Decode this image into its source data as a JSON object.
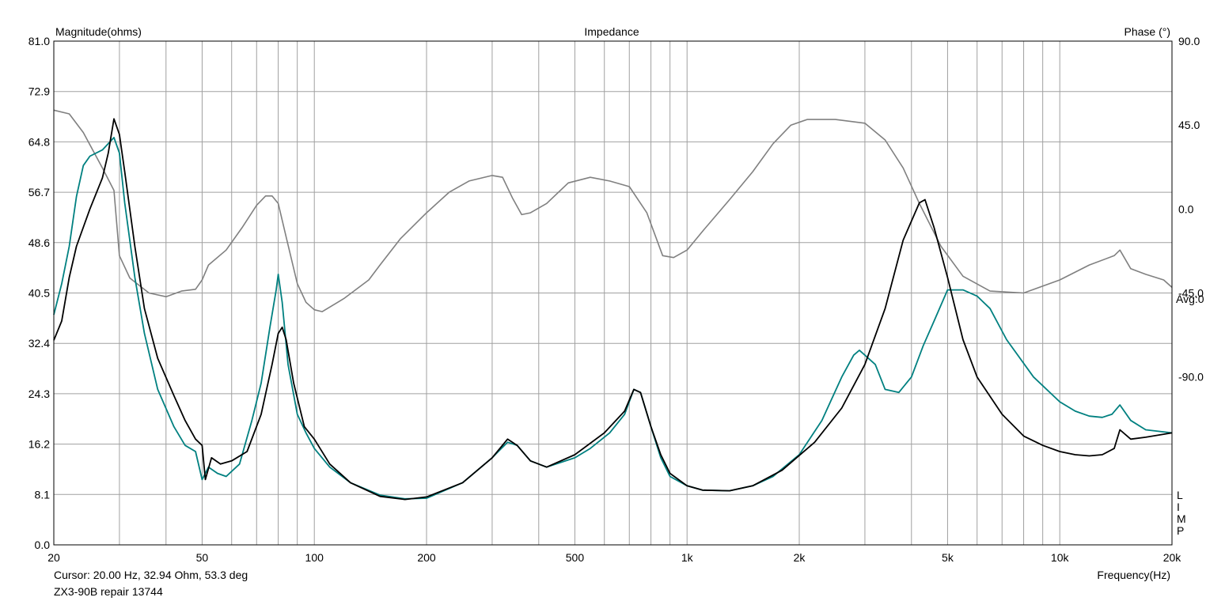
{
  "chart_data": {
    "type": "line",
    "title": "Impedance",
    "left_axis_label": "Magnitude(ohms)",
    "right_axis_label": "Phase (°)",
    "x_axis_label": "Frequency(Hz)",
    "x_scale": "log",
    "xlim": [
      20,
      20000
    ],
    "ylim_left": [
      0.0,
      81.0
    ],
    "ylim_right": [
      -180.0,
      90.0
    ],
    "grid": true,
    "left_ticks": [
      "81.0",
      "72.9",
      "64.8",
      "56.7",
      "48.6",
      "40.5",
      "32.4",
      "24.3",
      "16.2",
      "8.1",
      "0.0"
    ],
    "right_ticks": [
      "90.0",
      "45.0",
      "0.0",
      "-45.0",
      "-90.0"
    ],
    "x_tick_labels": [
      {
        "value": 20,
        "label": "20"
      },
      {
        "value": 50,
        "label": "50"
      },
      {
        "value": 100,
        "label": "100"
      },
      {
        "value": 200,
        "label": "200"
      },
      {
        "value": 500,
        "label": "500"
      },
      {
        "value": 1000,
        "label": "1k"
      },
      {
        "value": 2000,
        "label": "2k"
      },
      {
        "value": 5000,
        "label": "5k"
      },
      {
        "value": 10000,
        "label": "10k"
      },
      {
        "value": 20000,
        "label": "20k"
      }
    ],
    "avg_label": "Avg:0",
    "side_letters": [
      "L",
      "I",
      "M",
      "P"
    ],
    "cursor_text": "Cursor: 20.00 Hz, 32.94 Ohm, 53.3 deg",
    "file_label": "ZX3-90B repair 13744",
    "series": [
      {
        "axis": "right",
        "color": "#808080",
        "points": [
          [
            20,
            53
          ],
          [
            22,
            51
          ],
          [
            24,
            41
          ],
          [
            27,
            22
          ],
          [
            29,
            10
          ],
          [
            30,
            -25
          ],
          [
            32,
            -37
          ],
          [
            36,
            -45
          ],
          [
            40,
            -47
          ],
          [
            44,
            -44
          ],
          [
            48,
            -43
          ],
          [
            50,
            -38
          ],
          [
            52,
            -30
          ],
          [
            58,
            -22
          ],
          [
            64,
            -10
          ],
          [
            70,
            2
          ],
          [
            74,
            7
          ],
          [
            77,
            7
          ],
          [
            80,
            3
          ],
          [
            84,
            -15
          ],
          [
            90,
            -40
          ],
          [
            95,
            -50
          ],
          [
            100,
            -54
          ],
          [
            105,
            -55
          ],
          [
            120,
            -48
          ],
          [
            140,
            -38
          ],
          [
            150,
            -30
          ],
          [
            170,
            -16
          ],
          [
            200,
            -2
          ],
          [
            230,
            9
          ],
          [
            260,
            15
          ],
          [
            300,
            18
          ],
          [
            320,
            17
          ],
          [
            340,
            6
          ],
          [
            360,
            -3
          ],
          [
            380,
            -2
          ],
          [
            420,
            3
          ],
          [
            480,
            14
          ],
          [
            550,
            17
          ],
          [
            620,
            15
          ],
          [
            700,
            12
          ],
          [
            780,
            -2
          ],
          [
            860,
            -25
          ],
          [
            920,
            -26
          ],
          [
            1000,
            -22
          ],
          [
            1100,
            -12
          ],
          [
            1300,
            5
          ],
          [
            1500,
            20
          ],
          [
            1700,
            35
          ],
          [
            1900,
            45
          ],
          [
            2100,
            48
          ],
          [
            2500,
            48
          ],
          [
            3000,
            46
          ],
          [
            3400,
            37
          ],
          [
            3800,
            22
          ],
          [
            4200,
            3
          ],
          [
            4800,
            -20
          ],
          [
            5500,
            -36
          ],
          [
            6500,
            -44
          ],
          [
            8000,
            -45
          ],
          [
            10000,
            -38
          ],
          [
            12000,
            -30
          ],
          [
            14000,
            -25
          ],
          [
            14500,
            -22
          ],
          [
            15500,
            -32
          ],
          [
            17000,
            -35
          ],
          [
            19000,
            -38
          ],
          [
            20000,
            -42
          ]
        ]
      },
      {
        "axis": "left",
        "color": "#008080",
        "points": [
          [
            20,
            37
          ],
          [
            21,
            42
          ],
          [
            22,
            48
          ],
          [
            23,
            56
          ],
          [
            24,
            61
          ],
          [
            25,
            62.5
          ],
          [
            27,
            63.5
          ],
          [
            29,
            65.5
          ],
          [
            30,
            63
          ],
          [
            31,
            55
          ],
          [
            33,
            43
          ],
          [
            35,
            34
          ],
          [
            38,
            25
          ],
          [
            42,
            19
          ],
          [
            45,
            16
          ],
          [
            48,
            15
          ],
          [
            50,
            10.5
          ],
          [
            52,
            12.5
          ],
          [
            55,
            11.5
          ],
          [
            58,
            11
          ],
          [
            63,
            13
          ],
          [
            68,
            20
          ],
          [
            72,
            26
          ],
          [
            76,
            35
          ],
          [
            79,
            41
          ],
          [
            80,
            43.5
          ],
          [
            82,
            39
          ],
          [
            85,
            29
          ],
          [
            90,
            21
          ],
          [
            95,
            18
          ],
          [
            100,
            15.5
          ],
          [
            110,
            12.5
          ],
          [
            125,
            10
          ],
          [
            150,
            8
          ],
          [
            175,
            7.4
          ],
          [
            200,
            7.5
          ],
          [
            250,
            10
          ],
          [
            300,
            14
          ],
          [
            330,
            16.5
          ],
          [
            350,
            16
          ],
          [
            380,
            13.5
          ],
          [
            420,
            12.5
          ],
          [
            500,
            14
          ],
          [
            550,
            15.5
          ],
          [
            620,
            18
          ],
          [
            680,
            21
          ],
          [
            720,
            25
          ],
          [
            750,
            24.5
          ],
          [
            800,
            19
          ],
          [
            850,
            14
          ],
          [
            900,
            11
          ],
          [
            1000,
            9.5
          ],
          [
            1100,
            8.8
          ],
          [
            1300,
            8.7
          ],
          [
            1500,
            9.5
          ],
          [
            1700,
            11
          ],
          [
            2000,
            14.5
          ],
          [
            2300,
            20
          ],
          [
            2600,
            27
          ],
          [
            2800,
            30.5
          ],
          [
            2900,
            31.3
          ],
          [
            3000,
            30.5
          ],
          [
            3200,
            29
          ],
          [
            3400,
            25
          ],
          [
            3700,
            24.5
          ],
          [
            4000,
            27
          ],
          [
            4300,
            32
          ],
          [
            4600,
            36
          ],
          [
            5000,
            41
          ],
          [
            5500,
            41
          ],
          [
            6000,
            40
          ],
          [
            6500,
            38
          ],
          [
            7200,
            33
          ],
          [
            8500,
            27
          ],
          [
            10000,
            23
          ],
          [
            11000,
            21.5
          ],
          [
            12000,
            20.7
          ],
          [
            13000,
            20.5
          ],
          [
            13800,
            21
          ],
          [
            14500,
            22.5
          ],
          [
            15500,
            20
          ],
          [
            17000,
            18.5
          ],
          [
            20000,
            18
          ]
        ]
      },
      {
        "axis": "left",
        "color": "#000000",
        "points": [
          [
            20,
            32.9
          ],
          [
            21,
            36
          ],
          [
            22,
            43
          ],
          [
            23,
            48
          ],
          [
            25,
            54
          ],
          [
            27,
            59
          ],
          [
            28,
            63
          ],
          [
            29,
            68.5
          ],
          [
            30,
            66
          ],
          [
            31,
            60
          ],
          [
            33,
            48
          ],
          [
            35,
            38
          ],
          [
            38,
            30
          ],
          [
            42,
            24
          ],
          [
            45,
            20
          ],
          [
            48,
            17
          ],
          [
            50,
            16
          ],
          [
            51,
            10.5
          ],
          [
            53,
            14
          ],
          [
            56,
            13
          ],
          [
            60,
            13.5
          ],
          [
            66,
            15
          ],
          [
            72,
            21
          ],
          [
            77,
            29
          ],
          [
            80,
            34
          ],
          [
            82,
            35
          ],
          [
            84,
            33
          ],
          [
            88,
            26
          ],
          [
            94,
            19
          ],
          [
            100,
            17
          ],
          [
            110,
            13
          ],
          [
            125,
            10
          ],
          [
            150,
            7.8
          ],
          [
            175,
            7.3
          ],
          [
            200,
            7.7
          ],
          [
            250,
            10
          ],
          [
            300,
            14
          ],
          [
            330,
            17
          ],
          [
            350,
            16
          ],
          [
            380,
            13.5
          ],
          [
            420,
            12.5
          ],
          [
            500,
            14.5
          ],
          [
            600,
            18
          ],
          [
            680,
            21.5
          ],
          [
            720,
            25
          ],
          [
            750,
            24.5
          ],
          [
            800,
            19
          ],
          [
            850,
            14.5
          ],
          [
            900,
            11.5
          ],
          [
            1000,
            9.5
          ],
          [
            1100,
            8.8
          ],
          [
            1300,
            8.7
          ],
          [
            1500,
            9.5
          ],
          [
            1800,
            12
          ],
          [
            2200,
            16.5
          ],
          [
            2600,
            22
          ],
          [
            3000,
            29
          ],
          [
            3400,
            38
          ],
          [
            3800,
            49
          ],
          [
            4200,
            55
          ],
          [
            4350,
            55.5
          ],
          [
            4600,
            51
          ],
          [
            5000,
            43
          ],
          [
            5500,
            33
          ],
          [
            6000,
            27
          ],
          [
            7000,
            21
          ],
          [
            8000,
            17.5
          ],
          [
            9000,
            16
          ],
          [
            10000,
            15
          ],
          [
            11000,
            14.5
          ],
          [
            12000,
            14.3
          ],
          [
            13000,
            14.5
          ],
          [
            14000,
            15.5
          ],
          [
            14500,
            18.5
          ],
          [
            15500,
            17
          ],
          [
            17000,
            17.3
          ],
          [
            20000,
            18
          ]
        ]
      }
    ]
  }
}
